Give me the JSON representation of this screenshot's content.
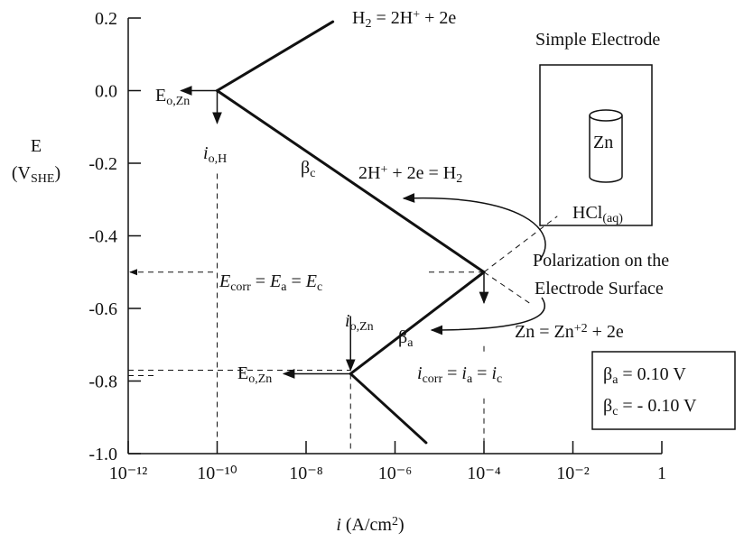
{
  "chart_data": {
    "type": "line",
    "xscale": "log",
    "xlim": [
      1e-12,
      1
    ],
    "xticks": [
      {
        "value": 1e-12,
        "label": "10⁻¹²"
      },
      {
        "value": 1e-10,
        "label": "10⁻¹⁰"
      },
      {
        "value": 1e-08,
        "label": "10⁻⁸"
      },
      {
        "value": 1e-06,
        "label": "10⁻⁶"
      },
      {
        "value": 0.0001,
        "label": "10⁻⁴"
      },
      {
        "value": 0.01,
        "label": "10⁻²"
      },
      1
    ],
    "ylim": [
      -1,
      0.2
    ],
    "yticks": [
      0.2,
      {
        "value": 0,
        "label": "0.0"
      },
      -0.2,
      -0.4,
      -0.6,
      -0.8,
      {
        "value": -1,
        "label": "-1.0"
      }
    ],
    "ylabel": [
      [
        "E"
      ],
      [
        "(V",
        {
          "sub": "SHE"
        },
        ")"
      ]
    ],
    "xlabel": [
      "i",
      "  (A/cm",
      {
        "sup": "2"
      },
      ")"
    ],
    "color": "#111111",
    "series": [
      {
        "x": [
          1e-10,
          4e-08
        ],
        "values": [
          0,
          0.19
        ]
      },
      {
        "x": [
          1e-10,
          0.0001
        ],
        "values": [
          0,
          -0.5
        ]
      },
      {
        "x": [
          1e-07,
          0.0001
        ],
        "values": [
          -0.78,
          -0.5
        ]
      },
      {
        "x": [
          1e-07,
          5e-06
        ],
        "values": [
          -0.78,
          -0.97
        ]
      }
    ],
    "annotations": [
      [
        "H",
        {
          "sub": "2"
        },
        " = 2H",
        {
          "sup": "+"
        },
        " + 2e"
      ],
      [
        "E",
        {
          "sub": "o,Zn"
        }
      ],
      [
        "i",
        {
          "sub": "o,H"
        }
      ],
      [
        "β",
        {
          "sub": "c"
        }
      ],
      [
        "2H",
        {
          "sup": "+"
        },
        " + 2e = H",
        {
          "sub": "2"
        }
      ],
      [
        "Simple Electrode"
      ],
      [
        "Zn"
      ],
      [
        "HCl",
        {
          "sub": "(aq)"
        }
      ],
      [
        "Polarization on the"
      ],
      [
        "Electrode Surface"
      ],
      [
        "E",
        {
          "sub": "corr"
        },
        " = ",
        "E",
        {
          "sub": "a"
        },
        " = ",
        "E",
        {
          "sub": "c"
        }
      ],
      [
        "i",
        {
          "sub": "o,Zn"
        }
      ],
      [
        "β",
        {
          "sub": "a"
        }
      ],
      [
        "Zn = Zn",
        {
          "sup": "+2"
        },
        " + 2e"
      ],
      [
        "E",
        {
          "sub": "o,Zn"
        }
      ],
      [
        "i",
        {
          "sub": "corr"
        },
        " = ",
        "i",
        {
          "sub": "a"
        },
        " = ",
        "i",
        {
          "sub": "c"
        }
      ],
      [
        "β",
        {
          "sub": "a"
        },
        " = 0.10 V"
      ],
      [
        "β",
        {
          "sub": "c"
        },
        " = - 0.10 V"
      ]
    ]
  }
}
